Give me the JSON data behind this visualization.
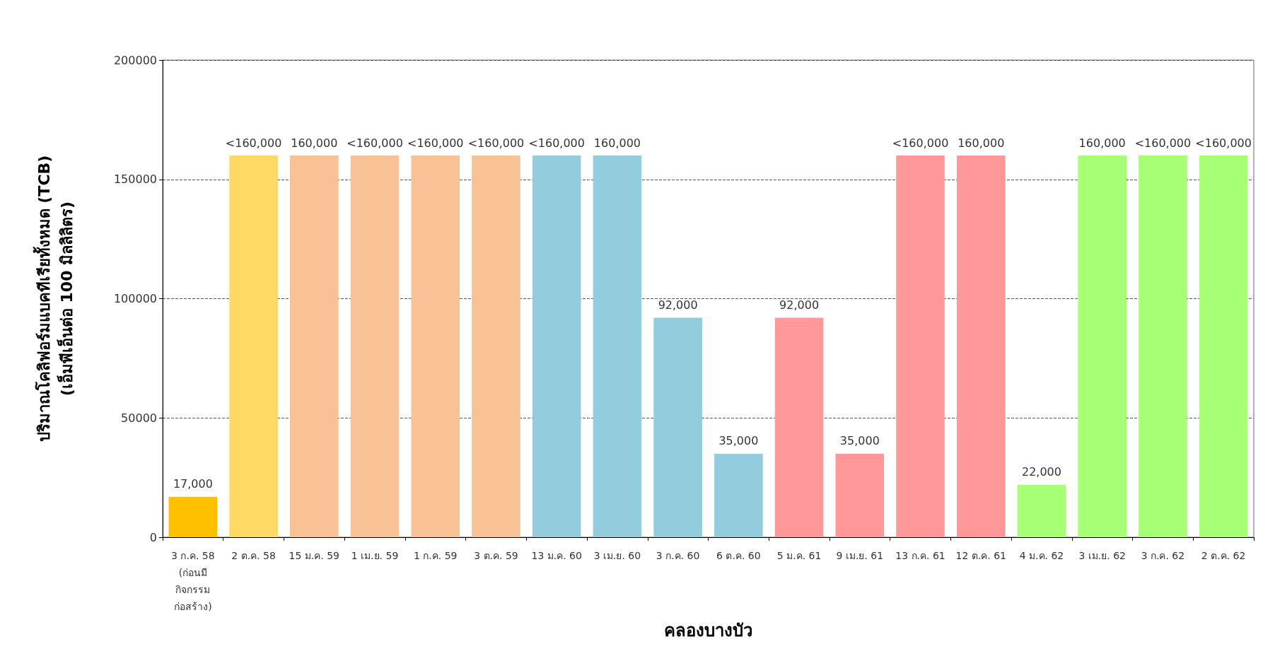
{
  "chart_data": {
    "type": "bar",
    "xlabel": "คลองบางบัว",
    "ylabel": "ปริมาณโคลิฟอร์มแบคทีเรียทั้งหมด (TCB)\n(เอ็มพีเอ็นต่อ 100 มิลลิลิตร)",
    "categories": [
      "3 ก.ค. 58\n(ก่อนมี\nกิจกรรม\nก่อสร้าง)",
      "2 ต.ค. 58",
      "15 ม.ค. 59",
      "1 เม.ย. 59",
      "1 ก.ค. 59",
      "3 ต.ค. 59",
      "13 ม.ค. 60",
      "3 เม.ย. 60",
      "3 ก.ค. 60",
      "6 ต.ค. 60",
      "5 ม.ค. 61",
      "9 เม.ย. 61",
      "13 ก.ค. 61",
      "12 ต.ค. 61",
      "4 ม.ค. 62",
      "3 เม.ย. 62",
      "3 ก.ค. 62",
      "2 ต.ค. 62"
    ],
    "values": [
      17000,
      160000,
      160000,
      160000,
      160000,
      160000,
      160000,
      160000,
      92000,
      35000,
      92000,
      35000,
      160000,
      160000,
      22000,
      160000,
      160000,
      160000
    ],
    "value_labels": [
      "17,000",
      "<160,000",
      "160,000",
      "<160,000",
      "<160,000",
      "<160,000",
      "<160,000",
      "160,000",
      "92,000",
      "35,000",
      "92,000",
      "35,000",
      "<160,000",
      "160,000",
      "22,000",
      "160,000",
      "<160,000",
      "<160,000"
    ],
    "colors": [
      "#ffc000",
      "#ffd966",
      "#f8c196",
      "#f8c196",
      "#f8c196",
      "#f8c196",
      "#93cddd",
      "#93cddd",
      "#93cddd",
      "#93cddd",
      "#ff9999",
      "#ff9999",
      "#ff9999",
      "#ff9999",
      "#a6ff75",
      "#a6ff75",
      "#a6ff75",
      "#a6ff75"
    ],
    "ylim": [
      0,
      200000
    ],
    "yticks": [
      0,
      50000,
      100000,
      150000,
      200000
    ],
    "grid": "y"
  }
}
